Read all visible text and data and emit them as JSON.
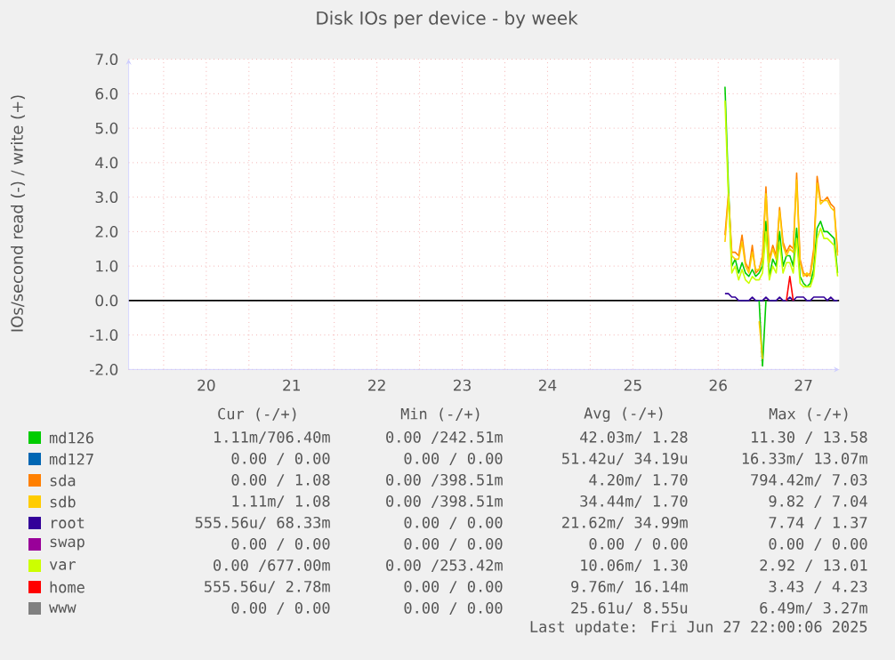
{
  "chart_data": {
    "type": "line",
    "title": "Disk IOs per device - by week",
    "ylabel": "IOs/second read (-) / write (+)",
    "x": [
      26.58,
      26.62,
      26.66,
      26.7,
      26.74,
      26.78,
      26.82,
      26.86,
      26.9,
      26.94,
      26.98,
      27.02,
      27.06,
      27.1,
      27.14,
      27.18,
      27.22,
      27.26,
      27.3,
      27.34,
      27.38,
      27.42,
      27.46,
      27.5,
      27.54,
      27.58,
      27.62,
      27.66,
      27.7,
      27.74,
      27.78,
      27.82,
      27.86,
      27.9
    ],
    "xlim": [
      19.59,
      27.92
    ],
    "xticks": [
      {
        "value": 20,
        "label": null
      },
      {
        "value": 20.5,
        "label": "20"
      },
      {
        "value": 21,
        "label": null
      },
      {
        "value": 21.5,
        "label": "21"
      },
      {
        "value": 22,
        "label": null
      },
      {
        "value": 22.5,
        "label": "22"
      },
      {
        "value": 23,
        "label": null
      },
      {
        "value": 23.5,
        "label": "23"
      },
      {
        "value": 24,
        "label": null
      },
      {
        "value": 24.5,
        "label": "24"
      },
      {
        "value": 25,
        "label": null
      },
      {
        "value": 25.5,
        "label": "25"
      },
      {
        "value": 26,
        "label": null
      },
      {
        "value": 26.5,
        "label": "26"
      },
      {
        "value": 27,
        "label": null
      },
      {
        "value": 27.5,
        "label": "27"
      }
    ],
    "ylim": [
      -2,
      7
    ],
    "yticks": [
      {
        "value": -2,
        "label": "-2.0"
      },
      {
        "value": -1,
        "label": "-1.0"
      },
      {
        "value": 0,
        "label": "0.0"
      },
      {
        "value": 1,
        "label": "1.0"
      },
      {
        "value": 2,
        "label": "2.0"
      },
      {
        "value": 3,
        "label": "3.0"
      },
      {
        "value": 4,
        "label": "4.0"
      },
      {
        "value": 5,
        "label": "5.0"
      },
      {
        "value": 6,
        "label": "6.0"
      },
      {
        "value": 7,
        "label": "7.0"
      }
    ],
    "grid": true,
    "legend": "bottom",
    "ref_lines": [
      {
        "axis": "y",
        "value": 0,
        "color": "#000000"
      }
    ],
    "series": [
      {
        "name": "md126",
        "color": "#00cc00",
        "values": [
          6.2,
          3.3,
          1.0,
          1.2,
          0.8,
          1.1,
          0.8,
          0.7,
          0.9,
          0.7,
          0.8,
          1.0,
          2.3,
          0.7,
          1.2,
          1.0,
          2.0,
          1.0,
          1.3,
          1.3,
          1.0,
          2.1,
          0.7,
          0.5,
          0.4,
          0.5,
          0.9,
          2.1,
          2.3,
          2.0,
          2.0,
          1.9,
          1.8,
          0.8
        ]
      },
      {
        "name": "md127",
        "color": "#0066b3",
        "values": [
          null,
          null,
          null,
          null,
          null,
          null,
          null,
          null,
          null,
          null,
          null,
          null,
          null,
          null,
          null,
          null,
          null,
          null,
          null,
          null,
          null,
          null,
          null,
          null,
          null,
          null,
          null,
          null,
          null,
          null,
          null,
          null,
          null,
          null
        ]
      },
      {
        "name": "sda",
        "color": "#ff8000",
        "values": [
          1.9,
          3.1,
          1.4,
          1.4,
          1.3,
          1.9,
          1.1,
          0.9,
          1.6,
          0.8,
          0.9,
          1.3,
          3.3,
          1.2,
          1.6,
          1.3,
          2.7,
          1.7,
          1.4,
          1.6,
          1.5,
          3.7,
          1.2,
          0.8,
          0.7,
          0.8,
          1.5,
          3.6,
          2.9,
          2.9,
          3.0,
          2.8,
          2.7,
          1.4
        ]
      },
      {
        "name": "sdb",
        "color": "#ffcc00",
        "values": [
          1.7,
          3.0,
          1.3,
          1.2,
          1.2,
          1.7,
          1.0,
          0.8,
          1.4,
          0.9,
          0.9,
          1.2,
          3.1,
          1.1,
          1.5,
          1.2,
          2.6,
          1.6,
          1.3,
          1.5,
          1.4,
          3.5,
          1.1,
          0.7,
          0.8,
          0.7,
          1.3,
          3.4,
          2.8,
          2.9,
          2.9,
          2.7,
          2.6,
          1.3
        ]
      },
      {
        "name": "root",
        "color": "#330099",
        "values": [
          0.2,
          0.2,
          0.1,
          0.1,
          0,
          0,
          0,
          0,
          0.1,
          0,
          0,
          0,
          0.1,
          0,
          0,
          0,
          0.1,
          0,
          0,
          0.1,
          0,
          0.1,
          0.1,
          0.1,
          0,
          0,
          0.1,
          0.1,
          0.1,
          0.1,
          0,
          0.1,
          0,
          0
        ]
      },
      {
        "name": "swap",
        "color": "#990099",
        "values": [
          null,
          null,
          null,
          null,
          null,
          null,
          null,
          null,
          null,
          null,
          null,
          null,
          null,
          null,
          null,
          null,
          null,
          null,
          null,
          null,
          null,
          null,
          null,
          null,
          null,
          null,
          null,
          null,
          null,
          null,
          null,
          null,
          null,
          null
        ]
      },
      {
        "name": "var",
        "color": "#ccff00",
        "values": [
          5.8,
          3.0,
          0.8,
          1.0,
          0.6,
          0.9,
          0.6,
          0.5,
          0.7,
          0.6,
          0.6,
          0.8,
          2.0,
          0.6,
          1.0,
          0.8,
          1.7,
          0.8,
          1.1,
          1.1,
          0.8,
          1.8,
          0.5,
          0.4,
          0.4,
          0.4,
          0.7,
          1.8,
          2.1,
          1.8,
          1.8,
          1.7,
          1.6,
          0.7
        ]
      },
      {
        "name": "home",
        "color": "#ff0000",
        "values": [
          null,
          null,
          null,
          null,
          null,
          null,
          null,
          null,
          null,
          null,
          null,
          null,
          null,
          null,
          null,
          null,
          null,
          null,
          0,
          0.7,
          0,
          null,
          null,
          null,
          null,
          null,
          null,
          null,
          null,
          null,
          null,
          null,
          null,
          null
        ]
      },
      {
        "name": "www",
        "color": "#808080",
        "values": [
          null,
          null,
          null,
          null,
          null,
          null,
          null,
          null,
          null,
          null,
          null,
          null,
          null,
          null,
          null,
          null,
          null,
          null,
          null,
          null,
          null,
          null,
          null,
          null,
          null,
          null,
          null,
          null,
          null,
          null,
          null,
          null,
          null,
          null
        ]
      },
      {
        "color": "#00cc00",
        "values": [
          null,
          null,
          null,
          null,
          null,
          null,
          null,
          null,
          null,
          null,
          0,
          -1.9,
          0,
          null,
          null,
          null,
          null,
          null,
          null,
          null,
          null,
          null,
          null,
          null,
          null,
          null,
          null,
          null,
          null,
          null,
          null,
          null,
          null,
          null
        ]
      },
      {
        "color": "#ffcc00",
        "values": [
          null,
          null,
          null,
          null,
          null,
          null,
          null,
          null,
          null,
          null,
          -0.6,
          -1.7,
          null,
          null,
          null,
          null,
          null,
          null,
          null,
          null,
          null,
          null,
          null,
          null,
          null,
          null,
          null,
          null,
          null,
          null,
          null,
          null,
          null,
          null
        ]
      }
    ],
    "annotations": [
      "Cur (-/+)",
      "Min (-/+)",
      "Avg (-/+)",
      "Max (-/+)",
      "1.11m/706.40m",
      "0.00 /242.51m",
      "42.03m/ 1.28",
      "11.30 / 13.58",
      "0.00 / 0.00",
      "0.00 / 0.00",
      "51.42u/ 34.19u",
      "16.33m/ 13.07m",
      "0.00 / 1.08",
      "0.00 /398.51m",
      "4.20m/ 1.70",
      "794.42m/ 7.03",
      "1.11m/ 1.08",
      "0.00 /398.51m",
      "34.44m/ 1.70",
      "9.82 / 7.04",
      "555.56u/ 68.33m",
      "0.00 / 0.00",
      "21.62m/ 34.99m",
      "7.74 / 1.37",
      "0.00 / 0.00",
      "0.00 / 0.00",
      "0.00 / 0.00",
      "0.00 / 0.00",
      "0.00 /677.00m",
      "0.00 /253.42m",
      "10.06m/ 1.30",
      "2.92 / 13.01",
      "555.56u/ 2.78m",
      "0.00 / 0.00",
      "9.76m/ 16.14m",
      "3.43 / 4.23",
      "0.00 / 0.00",
      "0.00 / 0.00",
      "25.61u/ 8.55u",
      "6.49m/ 3.27m",
      "Last update: Fri Jun 27 22:00:06 2025"
    ]
  }
}
